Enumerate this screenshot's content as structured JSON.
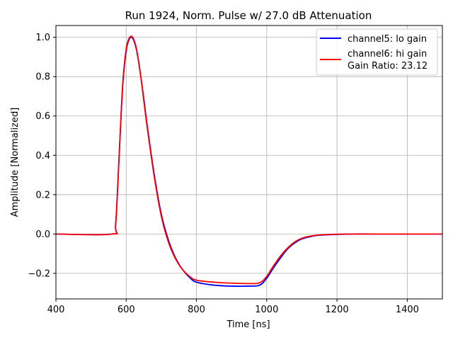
{
  "chart_data": {
    "type": "line",
    "title": "Run 1924, Norm. Pulse w/ 27.0 dB Attenuation",
    "xlabel": "Time [ns]",
    "ylabel": "Amplitude [Normalized]",
    "xlim": [
      400,
      1500
    ],
    "ylim": [
      -0.33,
      1.06
    ],
    "xticks": [
      400,
      600,
      800,
      1000,
      1200,
      1400
    ],
    "yticks": [
      -0.2,
      0.0,
      0.2,
      0.4,
      0.6,
      0.8,
      1.0
    ],
    "xtick_labels": [
      "400",
      "600",
      "800",
      "1000",
      "1200",
      "1400"
    ],
    "ytick_labels": [
      "−0.2",
      "0.0",
      "0.2",
      "0.4",
      "0.6",
      "0.8",
      "1.0"
    ],
    "grid": true,
    "legend_position": "top-right",
    "legend_extra_text": "Gain Ratio: 23.12",
    "series": [
      {
        "name": "channel5: lo gain",
        "color": "#0000ff",
        "x": [
          400,
          560,
          570,
          580,
          590,
          600,
          610,
          620,
          630,
          640,
          650,
          660,
          680,
          700,
          720,
          740,
          760,
          780,
          800,
          850,
          900,
          950,
          980,
          1000,
          1020,
          1040,
          1060,
          1080,
          1100,
          1120,
          1150,
          1200,
          1250,
          1300,
          1400,
          1500
        ],
        "y": [
          0.0,
          0.0,
          0.05,
          0.4,
          0.75,
          0.93,
          0.995,
          0.99,
          0.93,
          0.82,
          0.69,
          0.55,
          0.3,
          0.1,
          -0.03,
          -0.12,
          -0.18,
          -0.22,
          -0.245,
          -0.26,
          -0.265,
          -0.265,
          -0.26,
          -0.225,
          -0.17,
          -0.12,
          -0.075,
          -0.045,
          -0.025,
          -0.015,
          -0.006,
          -0.002,
          0.0,
          0.0,
          0.0,
          0.0
        ]
      },
      {
        "name": "channel6: hi gain",
        "color": "#ff0000",
        "x": [
          400,
          560,
          570,
          580,
          590,
          600,
          610,
          620,
          630,
          640,
          650,
          660,
          680,
          700,
          720,
          740,
          760,
          780,
          800,
          850,
          900,
          950,
          980,
          1000,
          1020,
          1040,
          1060,
          1080,
          1100,
          1120,
          1150,
          1200,
          1250,
          1300,
          1400,
          1500
        ],
        "y": [
          0.0,
          0.0,
          0.05,
          0.4,
          0.76,
          0.94,
          1.0,
          0.995,
          0.935,
          0.82,
          0.68,
          0.54,
          0.29,
          0.09,
          -0.04,
          -0.125,
          -0.18,
          -0.215,
          -0.235,
          -0.245,
          -0.25,
          -0.252,
          -0.248,
          -0.215,
          -0.16,
          -0.11,
          -0.07,
          -0.04,
          -0.022,
          -0.012,
          -0.005,
          -0.001,
          0.0,
          0.0,
          0.0,
          0.0
        ]
      }
    ]
  }
}
